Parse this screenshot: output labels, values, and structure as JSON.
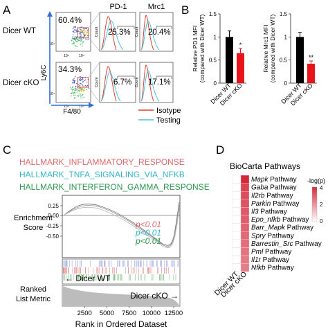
{
  "panel_a": {
    "letter": "A",
    "rows": [
      {
        "label": "Dicer WT",
        "dot_pct": "60.4%",
        "pd1_pct": "25.3%",
        "mrc1_pct": "20.4%"
      },
      {
        "label": "Dicer cKO",
        "dot_pct": "34.3%",
        "pd1_pct": "6.7%",
        "mrc1_pct": "17.1%"
      }
    ],
    "col_headers": [
      "PD-1",
      "Mrc1"
    ],
    "y_axis": "Ly6C",
    "x_axis": "F4/80",
    "tick_104": "10⁴",
    "count_label": "Count",
    "legend": [
      {
        "name": "Isotype",
        "color": "#d9402f"
      },
      {
        "name": "Testing",
        "color": "#4fc3dd"
      }
    ]
  },
  "panel_b": {
    "letter": "B",
    "charts": [
      {
        "ylabel": [
          "Relative PD1 MFI",
          "(compared with Dicer WT)"
        ],
        "categories": [
          "Dicer WT",
          "Dicer cKO"
        ],
        "values": [
          1.0,
          0.65
        ],
        "errors": [
          0.13,
          0.1
        ],
        "sig": "*",
        "ylim": [
          0,
          1.5
        ],
        "ticks": [
          "0",
          "0.5",
          "1",
          "1.5"
        ],
        "colors": [
          "#000000",
          "#e8141a"
        ]
      },
      {
        "ylabel": [
          "Relative Mrc1 MFI",
          "(compared with Dicer WT)"
        ],
        "categories": [
          "Dicer WT",
          "Dicer cKO"
        ],
        "values": [
          1.0,
          0.42
        ],
        "errors": [
          0.1,
          0.06
        ],
        "sig": "**",
        "ylim": [
          0,
          1.5
        ],
        "ticks": [
          "0",
          "0.5",
          "1",
          "1.5"
        ],
        "colors": [
          "#000000",
          "#e8141a"
        ]
      }
    ]
  },
  "panel_c": {
    "letter": "C",
    "legend": [
      {
        "name": "HALLMARK_INFLAMMATORY_RESPONSE",
        "color": "#e06b6b"
      },
      {
        "name": "HALLMARK_TNFA_SIGNALING_VIA_NFKB",
        "color": "#35b5c9"
      },
      {
        "name": "HALLMARK_INTERFERON_GAMMA_RESPONSE",
        "color": "#2e9a4e"
      }
    ],
    "pvalues": [
      {
        "text": "p<0.01",
        "color": "#e06b6b"
      },
      {
        "text": "p<0.01",
        "color": "#35b5c9"
      },
      {
        "text": "p<0.01",
        "color": "#2e9a4e"
      }
    ],
    "es_label": [
      "Enrichment",
      "Score"
    ],
    "ranked_label": [
      "Ranked",
      "List Metric"
    ],
    "es_ticks": [
      "0.25",
      "0.00",
      "-0.25",
      "-0.50"
    ],
    "x_ticks": [
      "2500",
      "5000",
      "7500",
      "10000",
      "12500"
    ],
    "xlabel": "Rank in Ordered Dataset",
    "left_arrow": "← Dicer WT",
    "right_arrow": "Dicer cKO →"
  },
  "panel_d": {
    "letter": "D",
    "title": "BioCarta Pathways",
    "legend_title": "-log(p)",
    "legend_ticks": [
      "4",
      "2",
      "0"
    ],
    "columns": [
      "Dicer WT",
      "Dicer cKO"
    ],
    "pathways": [
      {
        "name": "Mapk",
        "suffix": " Pathway",
        "value": 4.0
      },
      {
        "name": "Gaba",
        "suffix": " Pathway",
        "value": 3.5
      },
      {
        "name": "Il2rb",
        "suffix": " Pathway",
        "value": 3.3
      },
      {
        "name": "Parkin",
        "suffix": " Pathway",
        "value": 3.2
      },
      {
        "name": "Il3",
        "suffix": " Pathway",
        "value": 3.1
      },
      {
        "name": "Epo_nfkb",
        "suffix": " Pathway",
        "value": 3.0
      },
      {
        "name": "Barr_Mapk",
        "suffix": " Pathway",
        "value": 2.9
      },
      {
        "name": "Spry",
        "suffix": " Pathway",
        "value": 2.8
      },
      {
        "name": "Barrestin_Src",
        "suffix": " Pathway",
        "value": 2.7
      },
      {
        "name": "Pml",
        "suffix": " Pathway",
        "value": 2.6
      },
      {
        "name": "Il1r",
        "suffix": " Pathway",
        "value": 2.5
      },
      {
        "name": "Nfkb",
        "suffix": " Pathway",
        "value": 2.4
      }
    ],
    "wt_value": 0
  }
}
